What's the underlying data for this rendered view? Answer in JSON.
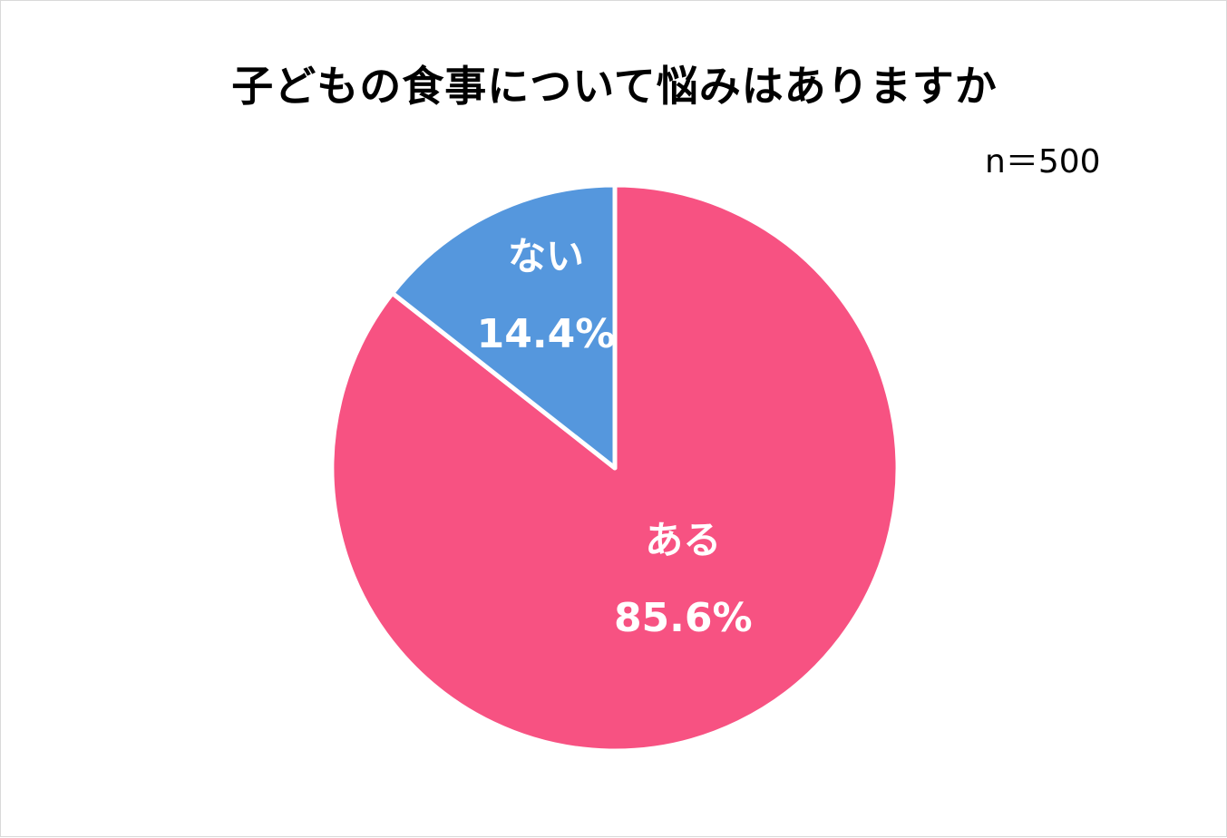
{
  "chart_data": {
    "type": "pie",
    "title": "子どもの食事について悩みはありますか",
    "annotation": "n＝500",
    "slices": [
      {
        "name": "ある",
        "value": 85.6,
        "value_label": "85.6%",
        "color": "#f75282"
      },
      {
        "name": "ない",
        "value": 14.4,
        "value_label": "14.4%",
        "color": "#5597dd"
      }
    ],
    "start_angle": "top (12 o'clock)",
    "direction": "clockwise",
    "slice_border_color": "#ffffff"
  }
}
